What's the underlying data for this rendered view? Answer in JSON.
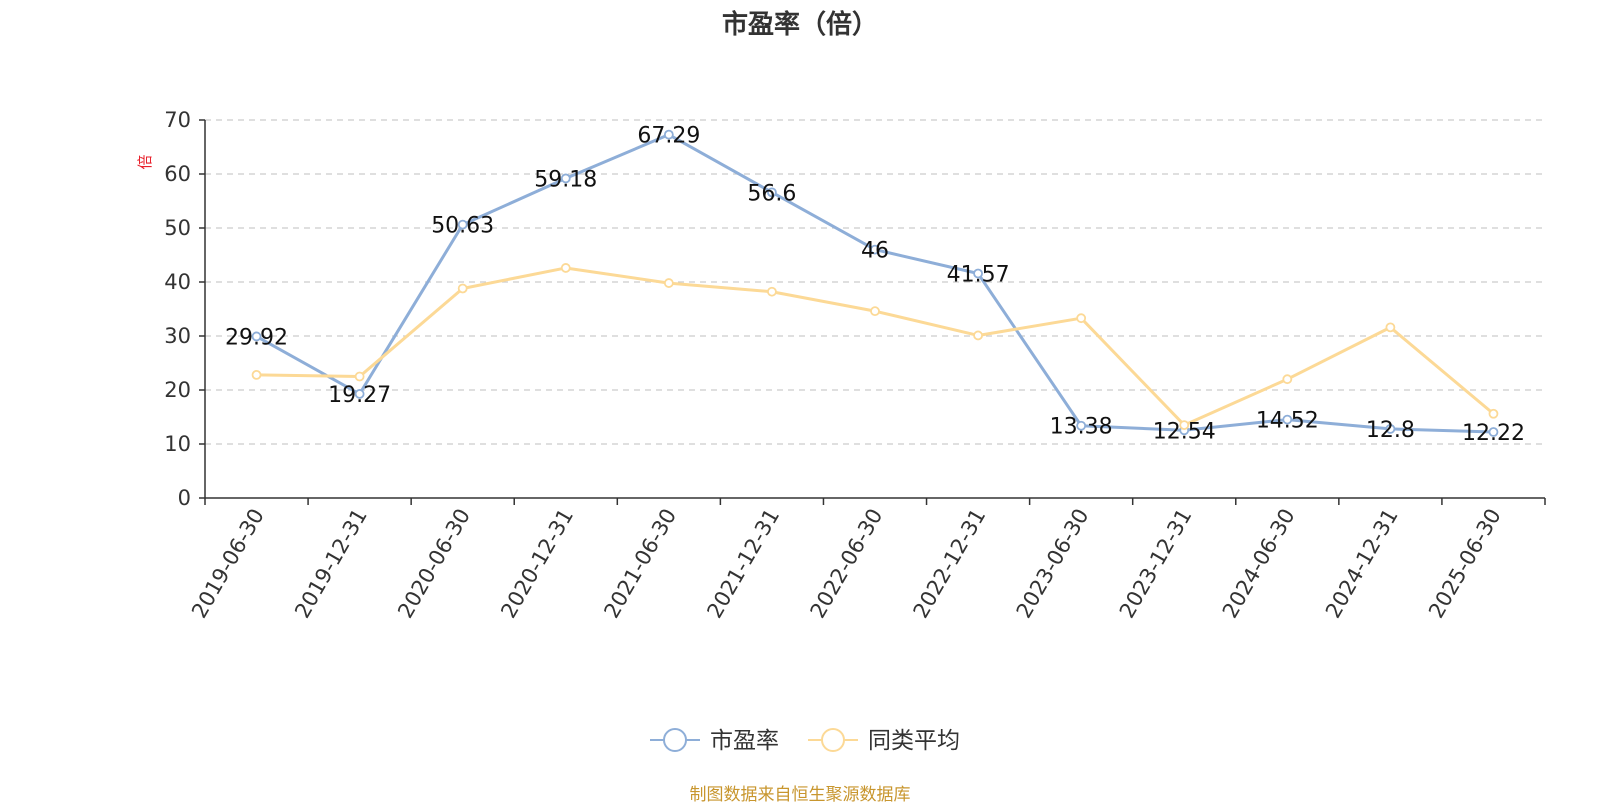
{
  "chart_data": {
    "type": "line",
    "title": "市盈率（倍）",
    "ylabel": "倍",
    "ylim": [
      0,
      70
    ],
    "yticks": [
      0,
      10,
      20,
      30,
      40,
      50,
      60,
      70
    ],
    "grid": true,
    "legend_position": "bottom",
    "categories": [
      "2019-06-30",
      "2019-12-31",
      "2020-06-30",
      "2020-12-31",
      "2021-06-30",
      "2021-12-31",
      "2022-06-30",
      "2022-12-31",
      "2023-06-30",
      "2023-12-31",
      "2024-06-30",
      "2024-12-31",
      "2025-06-30"
    ],
    "series": [
      {
        "name": "市盈率",
        "color": "#8eaed8",
        "values": [
          29.92,
          19.27,
          50.63,
          59.18,
          67.29,
          56.6,
          46,
          41.57,
          13.38,
          12.54,
          14.52,
          12.8,
          12.22
        ],
        "show_labels": true
      },
      {
        "name": "同类平均",
        "color": "#fcd996",
        "values": [
          22.8,
          22.5,
          38.8,
          42.6,
          39.8,
          38.2,
          34.6,
          30.1,
          33.3,
          13.5,
          22.0,
          31.6,
          15.6
        ],
        "show_labels": false
      }
    ]
  },
  "source_text": "制图数据来自恒生聚源数据库"
}
